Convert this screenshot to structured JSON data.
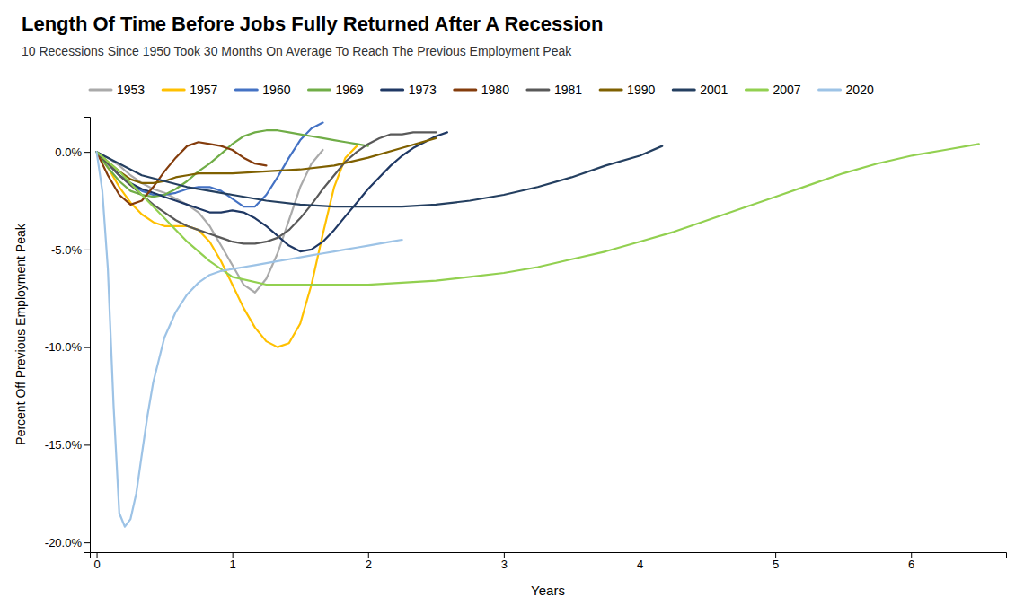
{
  "chart_data": {
    "type": "line",
    "title": "Length Of Time Before Jobs Fully Returned After A Recession",
    "subtitle": "10 Recessions Since 1950 Took 30 Months On Average To Reach The Previous Employment Peak",
    "xlabel": "Years",
    "ylabel": "Percent Off Previous Employment Peak",
    "xlim": [
      -0.05,
      6.7
    ],
    "ylim": [
      -0.205,
      0.018
    ],
    "xticks": [
      0,
      1,
      2,
      3,
      4,
      5,
      6
    ],
    "yticks": [
      {
        "value": 0.0,
        "label": "0.0%"
      },
      {
        "value": -0.05,
        "label": "-5.0%"
      },
      {
        "value": -0.1,
        "label": "-10.0%"
      },
      {
        "value": -0.15,
        "label": "-15.0%"
      },
      {
        "value": -0.2,
        "label": "-20.0%"
      }
    ],
    "grid": false,
    "legend": "top",
    "series": [
      {
        "name": "1953",
        "color": "#aaaaaa",
        "x": [
          0,
          0.083,
          0.167,
          0.25,
          0.333,
          0.417,
          0.5,
          0.583,
          0.667,
          0.75,
          0.833,
          0.917,
          1.0,
          1.083,
          1.167,
          1.25,
          1.333,
          1.417,
          1.5,
          1.583,
          1.667
        ],
        "values": [
          0,
          -0.003,
          -0.007,
          -0.012,
          -0.016,
          -0.019,
          -0.021,
          -0.024,
          -0.027,
          -0.031,
          -0.038,
          -0.048,
          -0.058,
          -0.068,
          -0.072,
          -0.065,
          -0.052,
          -0.035,
          -0.018,
          -0.006,
          0.001
        ]
      },
      {
        "name": "1957",
        "color": "#ffc000",
        "x": [
          0,
          0.083,
          0.167,
          0.25,
          0.333,
          0.417,
          0.5,
          0.583,
          0.667,
          0.75,
          0.833,
          0.917,
          1.0,
          1.083,
          1.167,
          1.25,
          1.333,
          1.417,
          1.5,
          1.583,
          1.667,
          1.75,
          1.833,
          1.917
        ],
        "values": [
          0,
          -0.008,
          -0.018,
          -0.026,
          -0.032,
          -0.036,
          -0.038,
          -0.038,
          -0.038,
          -0.04,
          -0.046,
          -0.056,
          -0.068,
          -0.08,
          -0.09,
          -0.097,
          -0.1,
          -0.098,
          -0.088,
          -0.068,
          -0.042,
          -0.018,
          -0.003,
          0.003
        ]
      },
      {
        "name": "1960",
        "color": "#4472c4",
        "x": [
          0,
          0.083,
          0.167,
          0.25,
          0.333,
          0.417,
          0.5,
          0.583,
          0.667,
          0.75,
          0.833,
          0.917,
          1.0,
          1.083,
          1.167,
          1.25,
          1.333,
          1.417,
          1.5,
          1.583,
          1.667
        ],
        "values": [
          0,
          -0.006,
          -0.012,
          -0.017,
          -0.02,
          -0.022,
          -0.022,
          -0.021,
          -0.019,
          -0.018,
          -0.018,
          -0.02,
          -0.024,
          -0.028,
          -0.028,
          -0.022,
          -0.013,
          -0.003,
          0.006,
          0.012,
          0.015
        ]
      },
      {
        "name": "1969",
        "color": "#70ad47",
        "x": [
          0,
          0.083,
          0.167,
          0.25,
          0.333,
          0.417,
          0.5,
          0.583,
          0.667,
          0.75,
          0.833,
          0.917,
          1.0,
          1.083,
          1.167,
          1.25,
          1.333,
          1.417,
          1.5,
          1.583,
          1.667,
          1.75,
          1.833,
          1.917,
          2.0
        ],
        "values": [
          0,
          -0.008,
          -0.015,
          -0.02,
          -0.022,
          -0.023,
          -0.022,
          -0.019,
          -0.015,
          -0.01,
          -0.006,
          -0.001,
          0.004,
          0.008,
          0.01,
          0.011,
          0.011,
          0.01,
          0.009,
          0.008,
          0.007,
          0.006,
          0.005,
          0.004,
          0.003
        ]
      },
      {
        "name": "1973",
        "color": "#1f3864",
        "x": [
          0,
          0.083,
          0.167,
          0.25,
          0.333,
          0.417,
          0.5,
          0.583,
          0.667,
          0.75,
          0.833,
          0.917,
          1.0,
          1.083,
          1.167,
          1.25,
          1.333,
          1.417,
          1.5,
          1.583,
          1.667,
          1.75,
          1.833,
          1.917,
          2.0,
          2.083,
          2.167,
          2.25,
          2.333,
          2.417,
          2.5,
          2.583
        ],
        "values": [
          0,
          -0.006,
          -0.012,
          -0.016,
          -0.019,
          -0.021,
          -0.023,
          -0.025,
          -0.027,
          -0.029,
          -0.031,
          -0.031,
          -0.03,
          -0.031,
          -0.034,
          -0.038,
          -0.043,
          -0.048,
          -0.051,
          -0.05,
          -0.046,
          -0.04,
          -0.033,
          -0.026,
          -0.019,
          -0.013,
          -0.007,
          -0.002,
          0.002,
          0.005,
          0.008,
          0.01
        ]
      },
      {
        "name": "1980",
        "color": "#843c0c",
        "x": [
          0,
          0.083,
          0.167,
          0.25,
          0.333,
          0.417,
          0.5,
          0.583,
          0.667,
          0.75,
          0.833,
          0.917,
          1.0,
          1.083,
          1.167,
          1.25
        ],
        "values": [
          0,
          -0.012,
          -0.022,
          -0.027,
          -0.025,
          -0.018,
          -0.01,
          -0.003,
          0.003,
          0.005,
          0.004,
          0.003,
          0.001,
          -0.003,
          -0.006,
          -0.007
        ]
      },
      {
        "name": "1981",
        "color": "#595959",
        "x": [
          0,
          0.083,
          0.167,
          0.25,
          0.333,
          0.417,
          0.5,
          0.583,
          0.667,
          0.75,
          0.833,
          0.917,
          1.0,
          1.083,
          1.167,
          1.25,
          1.333,
          1.417,
          1.5,
          1.583,
          1.667,
          1.75,
          1.833,
          1.917,
          2.0,
          2.083,
          2.167,
          2.25,
          2.333,
          2.417,
          2.5
        ],
        "values": [
          0,
          -0.006,
          -0.012,
          -0.017,
          -0.022,
          -0.027,
          -0.031,
          -0.035,
          -0.038,
          -0.04,
          -0.042,
          -0.044,
          -0.046,
          -0.047,
          -0.047,
          -0.046,
          -0.044,
          -0.04,
          -0.034,
          -0.027,
          -0.019,
          -0.012,
          -0.005,
          0.0,
          0.004,
          0.007,
          0.009,
          0.009,
          0.01,
          0.01,
          0.01
        ]
      },
      {
        "name": "1990",
        "color": "#7f6000",
        "x": [
          0,
          0.083,
          0.167,
          0.25,
          0.333,
          0.417,
          0.5,
          0.583,
          0.667,
          0.75,
          0.833,
          0.917,
          1.0,
          1.25,
          1.5,
          1.75,
          2.0,
          2.25,
          2.5
        ],
        "values": [
          0,
          -0.005,
          -0.01,
          -0.014,
          -0.016,
          -0.016,
          -0.015,
          -0.013,
          -0.012,
          -0.011,
          -0.011,
          -0.011,
          -0.011,
          -0.01,
          -0.009,
          -0.007,
          -0.003,
          0.002,
          0.007
        ]
      },
      {
        "name": "2001",
        "color": "#243f60",
        "x": [
          0,
          0.083,
          0.167,
          0.25,
          0.333,
          0.5,
          0.667,
          0.833,
          1.0,
          1.25,
          1.5,
          1.75,
          2.0,
          2.25,
          2.5,
          2.75,
          3.0,
          3.25,
          3.5,
          3.75,
          4.0,
          4.167
        ],
        "values": [
          0,
          -0.003,
          -0.006,
          -0.009,
          -0.012,
          -0.015,
          -0.018,
          -0.02,
          -0.022,
          -0.025,
          -0.027,
          -0.028,
          -0.028,
          -0.028,
          -0.027,
          -0.025,
          -0.022,
          -0.018,
          -0.013,
          -0.007,
          -0.002,
          0.003
        ]
      },
      {
        "name": "2007",
        "color": "#92d050",
        "x": [
          0,
          0.167,
          0.333,
          0.5,
          0.667,
          0.833,
          1.0,
          1.25,
          1.5,
          1.75,
          2.0,
          2.25,
          2.5,
          2.75,
          3.0,
          3.25,
          3.5,
          3.75,
          4.0,
          4.25,
          4.5,
          4.75,
          5.0,
          5.25,
          5.5,
          5.75,
          6.0,
          6.25,
          6.5
        ],
        "values": [
          0,
          -0.01,
          -0.022,
          -0.034,
          -0.046,
          -0.056,
          -0.064,
          -0.068,
          -0.068,
          -0.068,
          -0.068,
          -0.067,
          -0.066,
          -0.064,
          -0.062,
          -0.059,
          -0.055,
          -0.051,
          -0.046,
          -0.041,
          -0.035,
          -0.029,
          -0.023,
          -0.017,
          -0.011,
          -0.006,
          -0.002,
          0.001,
          0.004
        ]
      },
      {
        "name": "2020",
        "color": "#9dc3e6",
        "x": [
          0,
          0.042,
          0.083,
          0.125,
          0.167,
          0.208,
          0.25,
          0.292,
          0.333,
          0.375,
          0.417,
          0.5,
          0.583,
          0.667,
          0.75,
          0.833,
          0.917,
          1.0,
          1.083,
          1.167,
          1.25,
          1.333,
          1.417,
          1.5,
          1.583,
          1.667,
          1.75,
          1.833,
          1.917,
          2.0,
          2.083,
          2.167,
          2.25
        ],
        "values": [
          0,
          -0.02,
          -0.06,
          -0.13,
          -0.185,
          -0.192,
          -0.188,
          -0.175,
          -0.155,
          -0.135,
          -0.118,
          -0.095,
          -0.082,
          -0.073,
          -0.067,
          -0.063,
          -0.061,
          -0.06,
          -0.059,
          -0.058,
          -0.057,
          -0.056,
          -0.055,
          -0.054,
          -0.053,
          -0.052,
          -0.051,
          -0.05,
          -0.049,
          -0.048,
          -0.047,
          -0.046,
          -0.045
        ]
      }
    ]
  }
}
